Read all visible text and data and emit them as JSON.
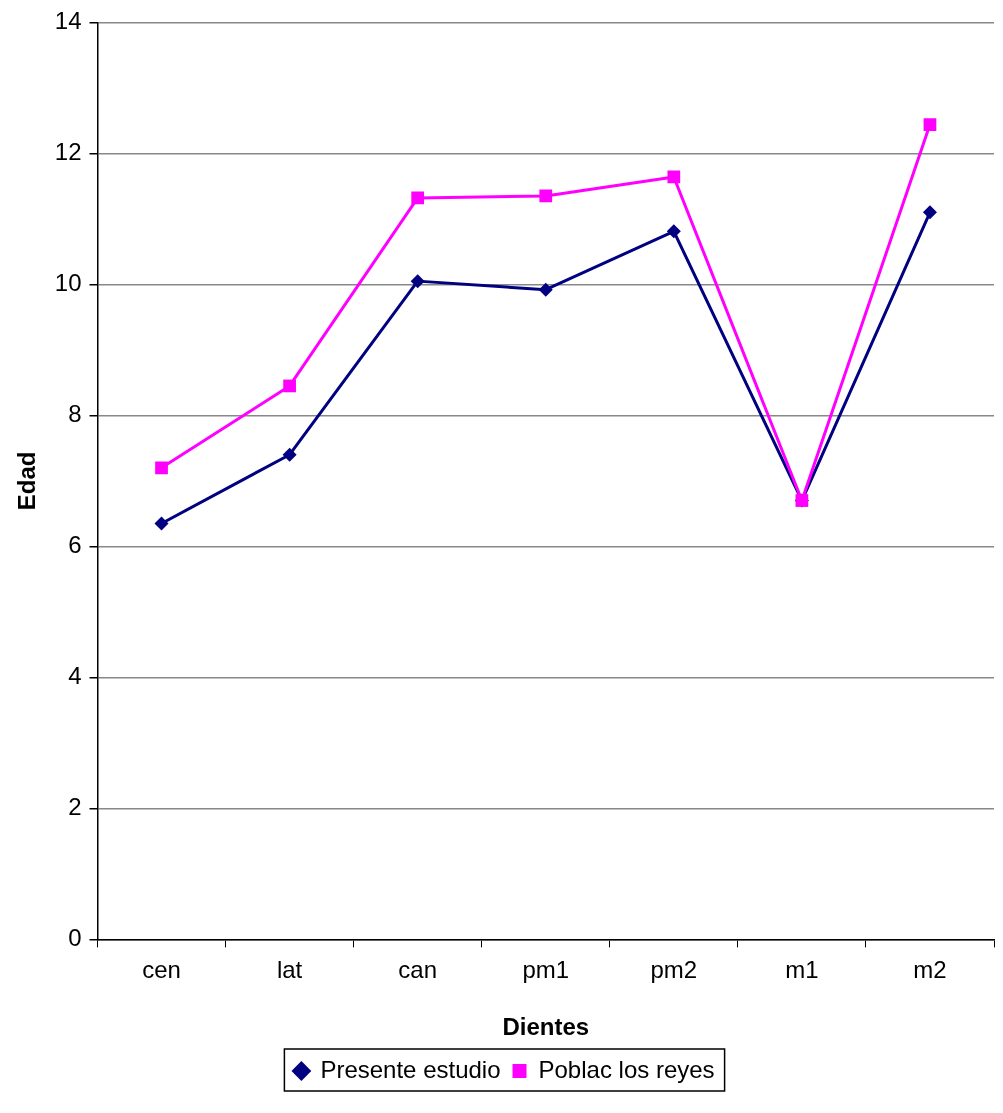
{
  "chart_data": {
    "type": "line",
    "xlabel": "Dientes",
    "ylabel": "Edad",
    "categories": [
      "cen",
      "lat",
      "can",
      "pm1",
      "pm2",
      "m1",
      "m2"
    ],
    "series": [
      {
        "name": "Presente estudio",
        "color": "#000080",
        "marker": "diamond",
        "values": [
          6.35,
          7.4,
          10.05,
          9.92,
          10.81,
          6.7,
          11.1
        ]
      },
      {
        "name": "Poblac los reyes",
        "color": "#ff00ff",
        "marker": "square",
        "values": [
          7.2,
          8.45,
          11.32,
          11.35,
          11.64,
          6.7,
          12.44
        ]
      }
    ],
    "ylim": [
      0,
      14
    ],
    "yticks": [
      0,
      2,
      4,
      6,
      8,
      10,
      12,
      14
    ],
    "grid": "y",
    "legend": "bottom"
  }
}
